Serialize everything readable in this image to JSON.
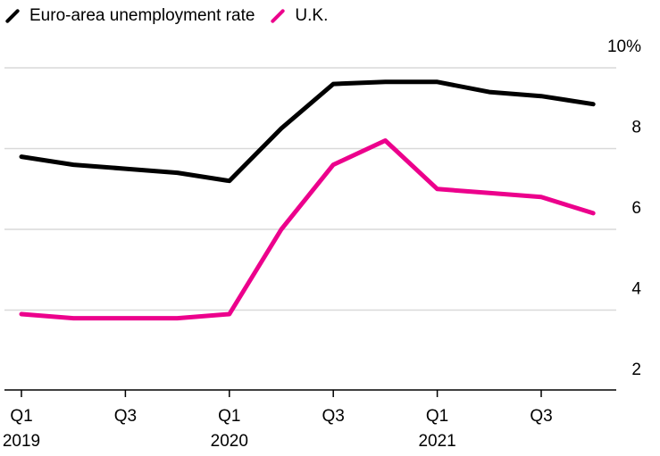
{
  "chart_data": {
    "type": "line",
    "title": "",
    "xlabel": "",
    "ylabel": "",
    "legend_position": "top-left",
    "grid": true,
    "ylim": [
      1.5,
      10
    ],
    "y_ticks": [
      {
        "value": 2,
        "label": "2"
      },
      {
        "value": 4,
        "label": "4"
      },
      {
        "value": 6,
        "label": "6"
      },
      {
        "value": 8,
        "label": "8"
      },
      {
        "value": 10,
        "label": "10%"
      }
    ],
    "categories": [
      "2019 Q1",
      "2019 Q2",
      "2019 Q3",
      "2019 Q4",
      "2020 Q1",
      "2020 Q2",
      "2020 Q3",
      "2020 Q4",
      "2021 Q1",
      "2021 Q2",
      "2021 Q3",
      "2021 Q4"
    ],
    "x_ticks": [
      {
        "index": 0,
        "label": "Q1",
        "year": "2019"
      },
      {
        "index": 2,
        "label": "Q3",
        "year": ""
      },
      {
        "index": 4,
        "label": "Q1",
        "year": "2020"
      },
      {
        "index": 6,
        "label": "Q3",
        "year": ""
      },
      {
        "index": 8,
        "label": "Q1",
        "year": "2021"
      },
      {
        "index": 10,
        "label": "Q3",
        "year": ""
      }
    ],
    "series": [
      {
        "name": "Euro-area unemployment rate",
        "color": "#000000",
        "values": [
          7.8,
          7.6,
          7.5,
          7.4,
          7.2,
          8.5,
          9.6,
          9.65,
          9.65,
          9.4,
          9.3,
          9.1
        ]
      },
      {
        "name": "U.K.",
        "color": "#ec008c",
        "values": [
          3.9,
          3.8,
          3.8,
          3.8,
          3.9,
          6.0,
          7.6,
          8.2,
          7.0,
          6.9,
          6.8,
          6.4
        ]
      }
    ]
  }
}
